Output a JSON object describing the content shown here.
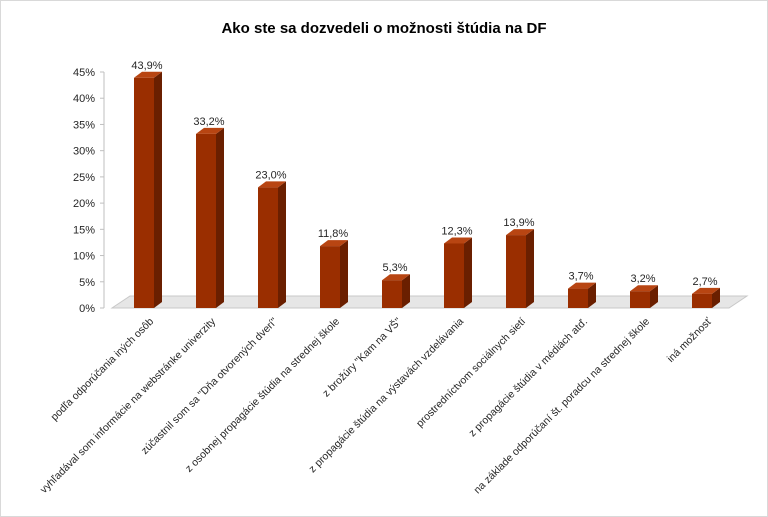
{
  "chart_data": {
    "type": "bar",
    "title": "Ako ste sa dozvedeli o možnosti štúdia na DF",
    "categories": [
      "podľa odporúčania iných osôb",
      "vyhľadával som informácie na webstránke univerzity",
      "zúčastnil som sa \"Dňa otvorených dverí\"",
      "z osobnej propagácie štúdia na strednej škole",
      "z brožúry \"Kam na VŠ\"",
      "z propagácie štúdia na výstavách vzdelávania",
      "prostredníctvom sociálnych sietí",
      "z propagácie štúdia v médiách atď.",
      "na základe odporúčaní št. poradcu na strednej škole",
      "iná možnosť"
    ],
    "values": [
      43.9,
      33.2,
      23.0,
      11.8,
      5.3,
      12.3,
      13.9,
      3.7,
      3.2,
      2.7
    ],
    "data_labels": [
      "43,9%",
      "33,2%",
      "23,0%",
      "11,8%",
      "5,3%",
      "12,3%",
      "13,9%",
      "3,7%",
      "3,2%",
      "2,7%"
    ],
    "yticks": [
      "0%",
      "5%",
      "10%",
      "15%",
      "20%",
      "25%",
      "30%",
      "35%",
      "40%",
      "45%"
    ],
    "ylim": [
      0,
      45
    ],
    "xlabel": "",
    "ylabel": "",
    "grid": false,
    "legend": "none",
    "colors": {
      "bar_front": "#9a2e00",
      "bar_side": "#6a1f00",
      "bar_top": "#b84512",
      "floor": "#e6e6e6"
    }
  }
}
